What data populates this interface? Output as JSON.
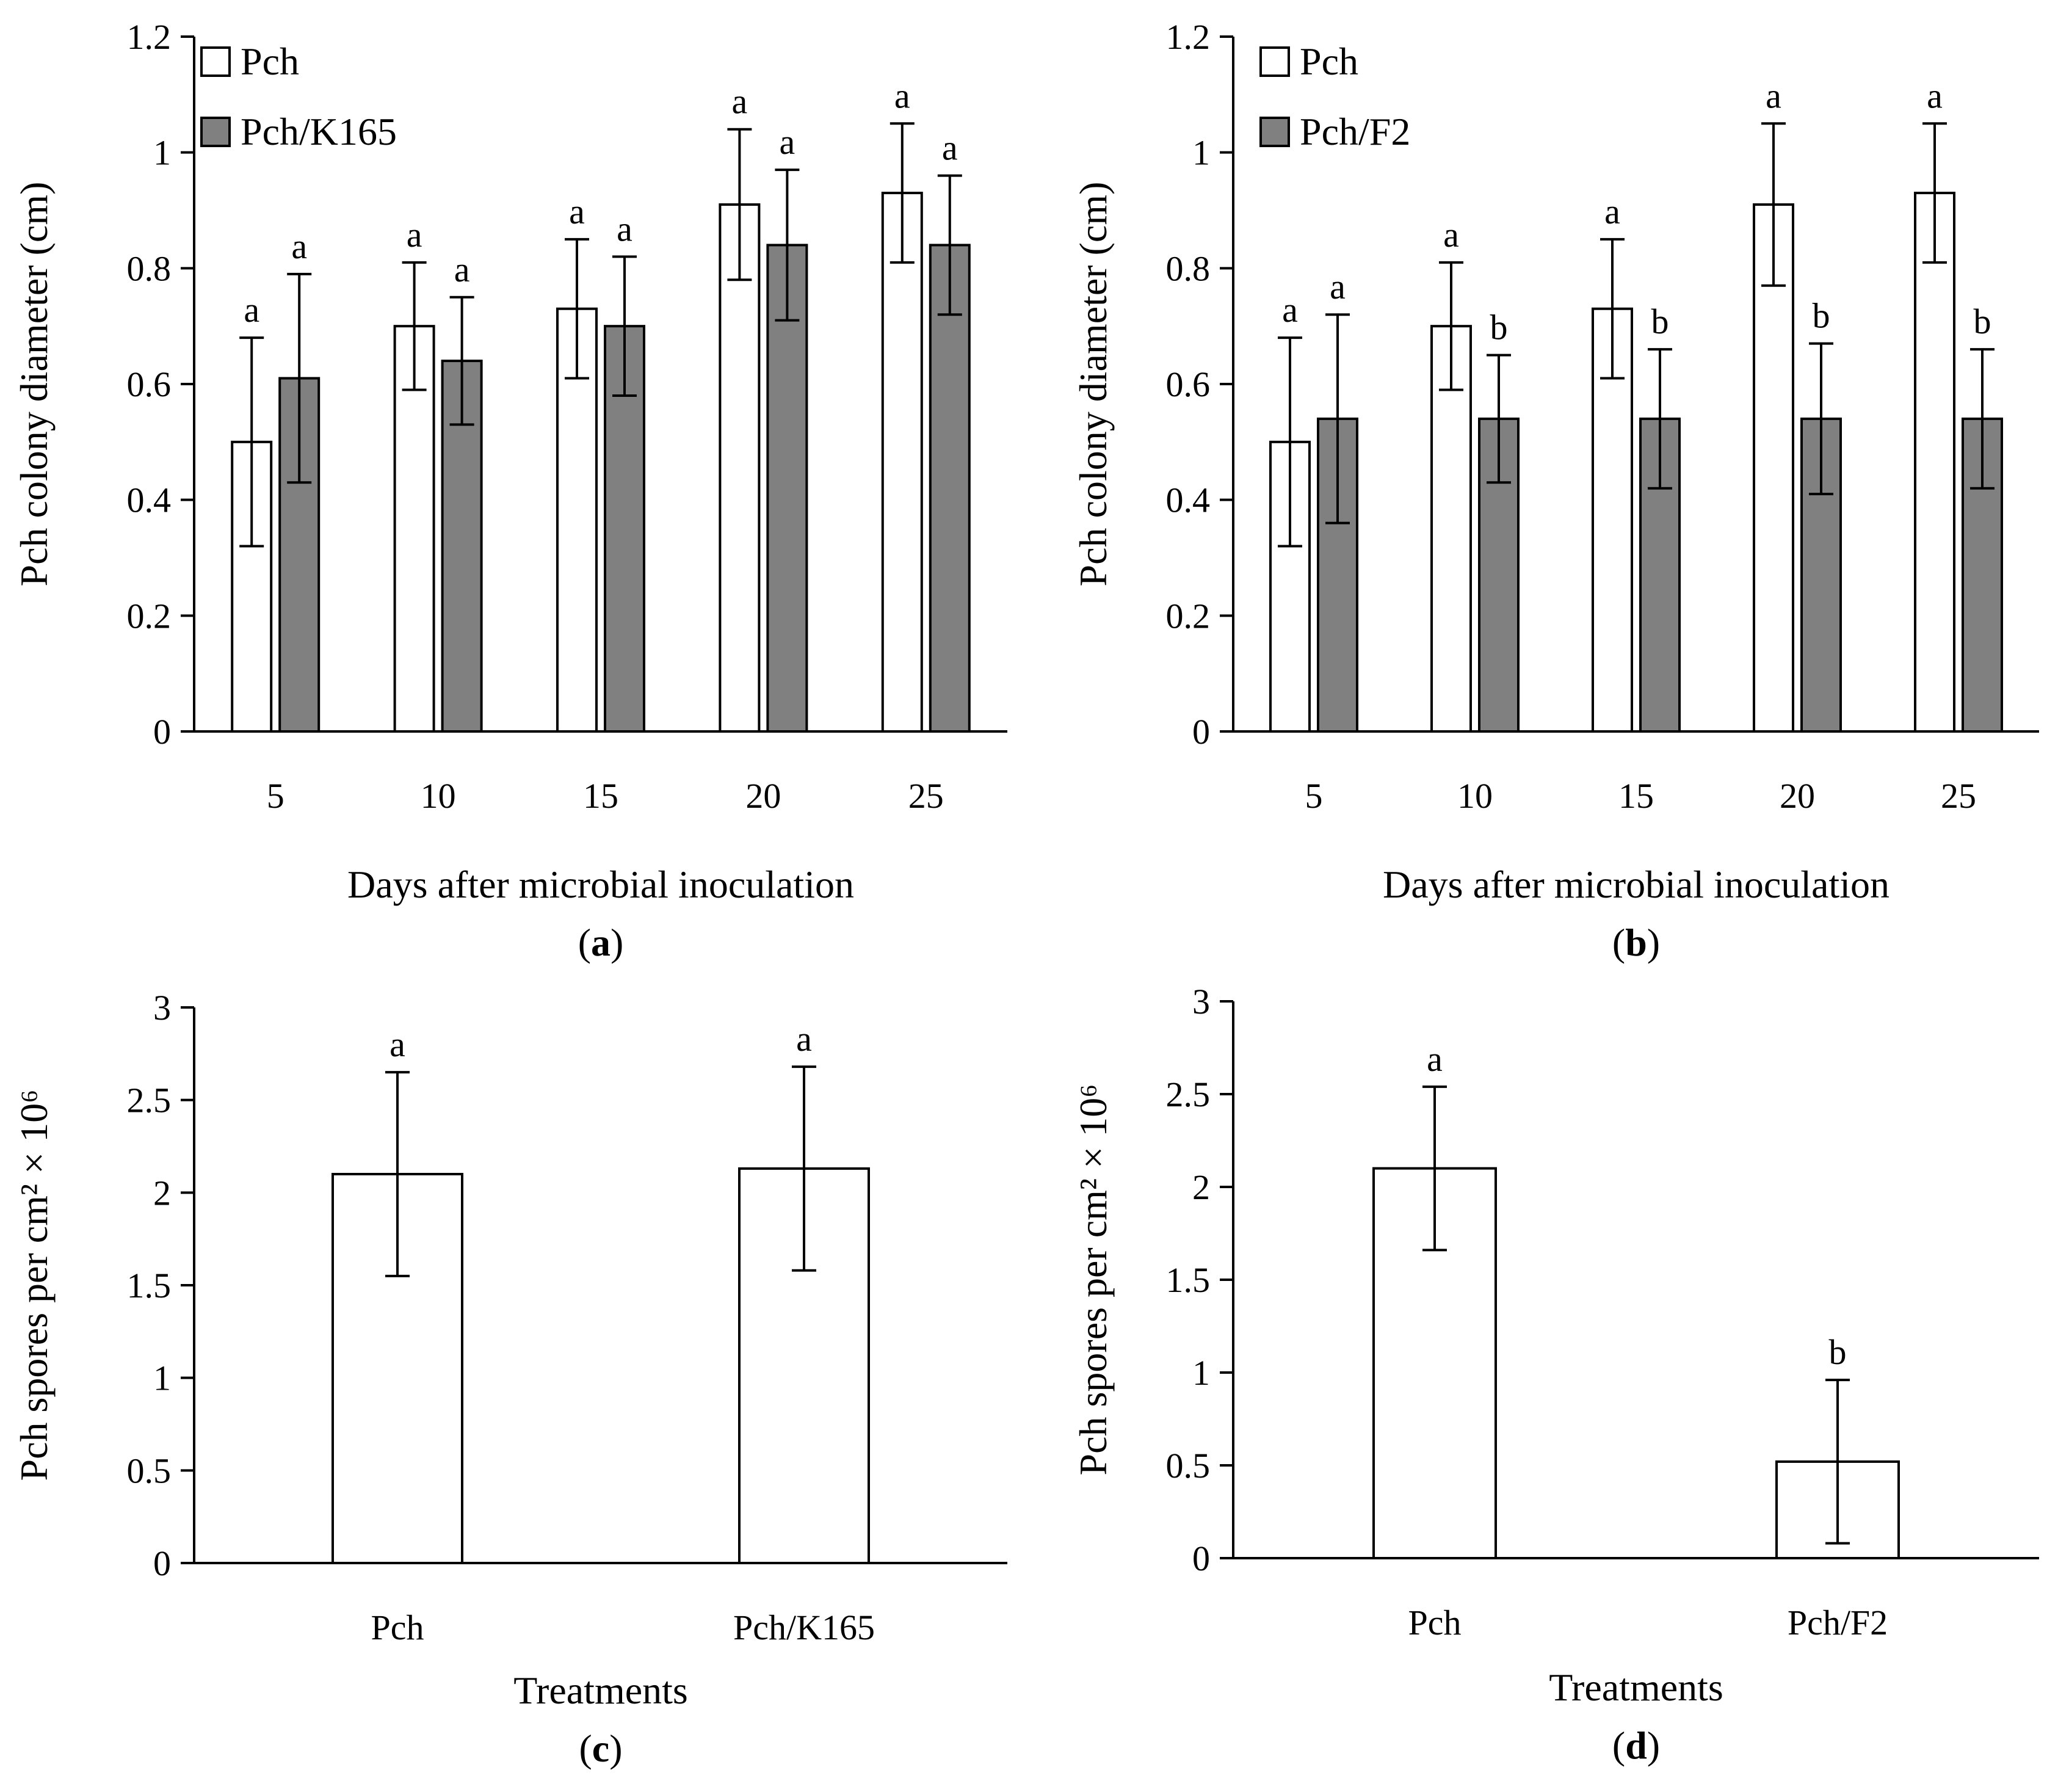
{
  "chart_data": [
    {
      "type": "bar",
      "panel": "a",
      "ylabel": "Pch colony diameter (cm)",
      "xlabel": "Days after microbial inoculation",
      "ylim": [
        0,
        1.2
      ],
      "yticks": [
        "0",
        "0.2",
        "0.4",
        "0.6",
        "0.8",
        "1",
        "1.2"
      ],
      "categories": [
        "5",
        "10",
        "15",
        "20",
        "25"
      ],
      "legend_position": "top-left",
      "series": [
        {
          "name": "Pch",
          "color": "#ffffff",
          "values": [
            0.5,
            0.7,
            0.73,
            0.91,
            0.93
          ],
          "errors": [
            0.18,
            0.11,
            0.12,
            0.13,
            0.12
          ],
          "letters": [
            "a",
            "a",
            "a",
            "a",
            "a"
          ]
        },
        {
          "name": "Pch/K165",
          "color": "#808080",
          "values": [
            0.61,
            0.64,
            0.7,
            0.84,
            0.84
          ],
          "errors": [
            0.18,
            0.11,
            0.12,
            0.13,
            0.12
          ],
          "letters": [
            "a",
            "a",
            "a",
            "a",
            "a"
          ]
        }
      ]
    },
    {
      "type": "bar",
      "panel": "b",
      "ylabel": "Pch colony diameter (cm)",
      "xlabel": "Days after microbial inoculation",
      "ylim": [
        0,
        1.2
      ],
      "yticks": [
        "0",
        "0.2",
        "0.4",
        "0.6",
        "0.8",
        "1",
        "1.2"
      ],
      "categories": [
        "5",
        "10",
        "15",
        "20",
        "25"
      ],
      "legend_position": "top-left",
      "series": [
        {
          "name": "Pch",
          "color": "#ffffff",
          "values": [
            0.5,
            0.7,
            0.73,
            0.91,
            0.93
          ],
          "errors": [
            0.18,
            0.11,
            0.12,
            0.14,
            0.12
          ],
          "letters": [
            "a",
            "a",
            "a",
            "a",
            "a"
          ]
        },
        {
          "name": "Pch/F2",
          "color": "#808080",
          "values": [
            0.54,
            0.54,
            0.54,
            0.54,
            0.54
          ],
          "errors": [
            0.18,
            0.11,
            0.12,
            0.13,
            0.12
          ],
          "letters": [
            "a",
            "b",
            "b",
            "b",
            "b"
          ]
        }
      ]
    },
    {
      "type": "bar",
      "panel": "c",
      "ylabel": "Pch spores per cm² × 10⁶",
      "xlabel": "Treatments",
      "ylim": [
        0,
        3
      ],
      "yticks": [
        "0",
        "0.5",
        "1",
        "1.5",
        "2",
        "2.5",
        "3"
      ],
      "categories": [
        "Pch",
        "Pch/K165"
      ],
      "series": [
        {
          "name": "",
          "color": "#ffffff",
          "values": [
            2.1,
            2.13
          ],
          "errors": [
            0.55,
            0.55
          ],
          "letters": [
            "a",
            "a"
          ]
        }
      ]
    },
    {
      "type": "bar",
      "panel": "d",
      "ylabel": "Pch spores per cm² × 10⁶",
      "xlabel": "Treatments",
      "ylim": [
        0,
        3
      ],
      "yticks": [
        "0",
        "0.5",
        "1",
        "1.5",
        "2",
        "2.5",
        "3"
      ],
      "categories": [
        "Pch",
        "Pch/F2"
      ],
      "series": [
        {
          "name": "",
          "color": "#ffffff",
          "values": [
            2.1,
            0.52
          ],
          "errors": [
            0.44,
            0.44
          ],
          "letters": [
            "a",
            "b"
          ]
        }
      ]
    }
  ],
  "panel_labels": [
    "a",
    "b",
    "c",
    "d"
  ]
}
